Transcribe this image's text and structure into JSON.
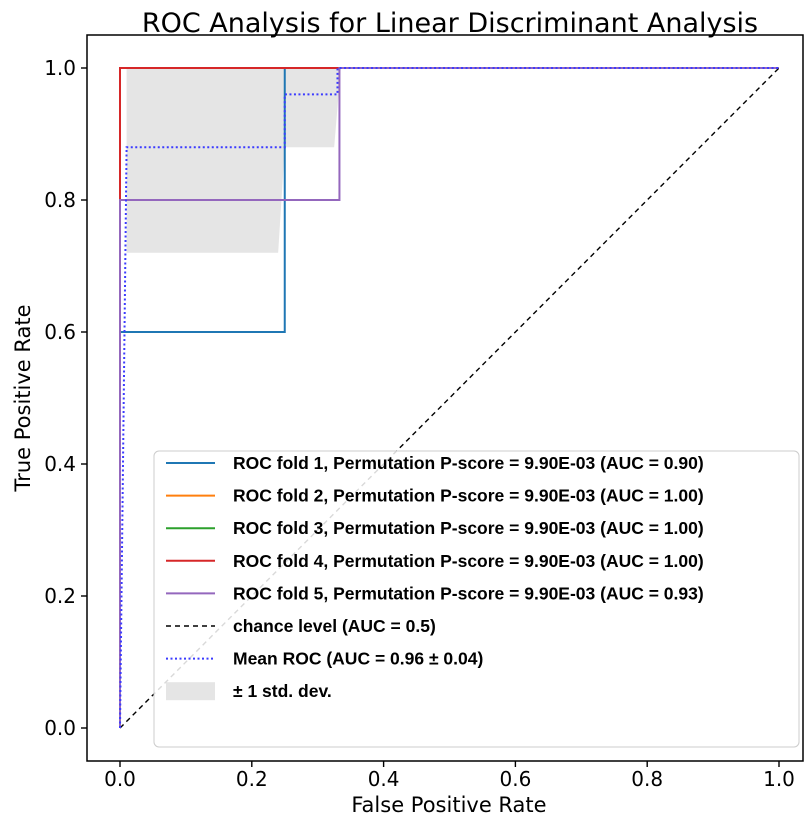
{
  "chart_data": {
    "type": "line",
    "title": "ROC Analysis for Linear Discriminant Analysis",
    "xlabel": "False Positive Rate",
    "ylabel": "True Positive Rate",
    "xlim": [
      -0.05,
      1.05
    ],
    "ylim": [
      -0.05,
      1.05
    ],
    "xticks": [
      "0.0",
      "0.2",
      "0.4",
      "0.6",
      "0.8",
      "1.0"
    ],
    "yticks": [
      "0.0",
      "0.2",
      "0.4",
      "0.6",
      "0.8",
      "1.0"
    ],
    "grid": false,
    "legend_position": "lower-right",
    "series": [
      {
        "name": "ROC fold 1, Permutation P-score = 9.90E-03 (AUC = 0.90)",
        "color": "#1f77b4",
        "style": "solid",
        "x": [
          0,
          0,
          0.25,
          0.25,
          1
        ],
        "y": [
          0,
          0.6,
          0.6,
          1,
          1
        ]
      },
      {
        "name": "ROC fold 2, Permutation P-score = 9.90E-03 (AUC = 1.00)",
        "color": "#ff7f0e",
        "style": "solid",
        "x": [
          0,
          0,
          1
        ],
        "y": [
          0,
          1,
          1
        ]
      },
      {
        "name": "ROC fold 3, Permutation P-score = 9.90E-03 (AUC = 1.00)",
        "color": "#2ca02c",
        "style": "solid",
        "x": [
          0,
          0,
          1
        ],
        "y": [
          0,
          1,
          1
        ]
      },
      {
        "name": "ROC fold 4, Permutation P-score = 9.90E-03 (AUC = 1.00)",
        "color": "#d62728",
        "style": "solid",
        "x": [
          0,
          0,
          1
        ],
        "y": [
          0,
          1,
          1
        ]
      },
      {
        "name": "ROC fold 5, Permutation P-score = 9.90E-03 (AUC = 0.93)",
        "color": "#9467bd",
        "style": "solid",
        "x": [
          0,
          0,
          0.333,
          0.333,
          1
        ],
        "y": [
          0,
          0.8,
          0.8,
          1,
          1
        ]
      },
      {
        "name": "chance level (AUC = 0.5)",
        "color": "#000000",
        "style": "dashed",
        "x": [
          0,
          1
        ],
        "y": [
          0,
          1
        ]
      },
      {
        "name": "Mean ROC (AUC = 0.96 ± 0.04)",
        "color": "#3b3bff",
        "style": "dotted",
        "x": [
          0,
          0.01,
          0.01,
          0.25,
          0.25,
          0.33,
          0.33,
          1
        ],
        "y": [
          0,
          0.88,
          0.88,
          0.88,
          0.96,
          0.96,
          1,
          1
        ]
      }
    ],
    "band": {
      "name": "± 1 std. dev.",
      "color": "#d3d3d3",
      "x": [
        0.01,
        0.01,
        0.24,
        0.24,
        0.25,
        0.25,
        0.325,
        0.325,
        0.335,
        0.335
      ],
      "upper": [
        1,
        1,
        1,
        1,
        1,
        1,
        1,
        1,
        1,
        1
      ],
      "lower": [
        0.72,
        0.72,
        0.72,
        0.72,
        0.88,
        0.88,
        0.88,
        0.88,
        1,
        1
      ]
    }
  }
}
